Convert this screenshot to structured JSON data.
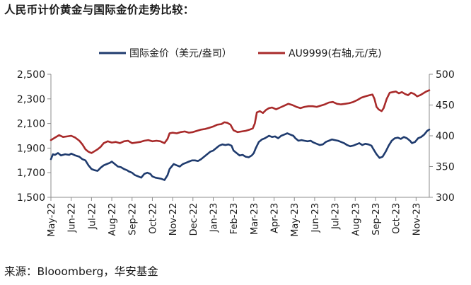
{
  "title": "人民币计价黄金与国际金价走势比较：",
  "source": "来源：Blooomberg，华安基金",
  "chart_data": {
    "type": "line",
    "x_labels": [
      "May-22",
      "Jun-22",
      "Jul-22",
      "Aug-22",
      "Sep-22",
      "Oct-22",
      "Nov-22",
      "Dec-22",
      "Jan-23",
      "Feb-23",
      "Mar-23",
      "Apr-23",
      "May-23",
      "Jun-23",
      "Jul-23",
      "Aug-23",
      "Sep-23",
      "Oct-23",
      "Nov-23"
    ],
    "x_range": [
      0,
      18.65
    ],
    "left_axis": {
      "ticks": [
        "1,500",
        "1,700",
        "1,900",
        "2,100",
        "2,300",
        "2,500"
      ],
      "ylim": [
        1500,
        2500
      ]
    },
    "right_axis": {
      "ticks": [
        "300",
        "350",
        "400",
        "450",
        "500"
      ],
      "ylim": [
        300,
        500
      ]
    },
    "series": [
      {
        "name": "国际金价（美元/盎司）",
        "axis": "left",
        "color": "#1f3b6e",
        "points": [
          [
            0,
            1810
          ],
          [
            0.1,
            1850
          ],
          [
            0.2,
            1845
          ],
          [
            0.35,
            1860
          ],
          [
            0.5,
            1840
          ],
          [
            0.7,
            1850
          ],
          [
            0.9,
            1845
          ],
          [
            1.0,
            1855
          ],
          [
            1.2,
            1840
          ],
          [
            1.4,
            1830
          ],
          [
            1.55,
            1810
          ],
          [
            1.7,
            1800
          ],
          [
            1.85,
            1760
          ],
          [
            2.0,
            1730
          ],
          [
            2.15,
            1720
          ],
          [
            2.3,
            1715
          ],
          [
            2.45,
            1740
          ],
          [
            2.6,
            1760
          ],
          [
            2.75,
            1770
          ],
          [
            2.9,
            1780
          ],
          [
            3.0,
            1790
          ],
          [
            3.15,
            1770
          ],
          [
            3.3,
            1750
          ],
          [
            3.45,
            1745
          ],
          [
            3.6,
            1730
          ],
          [
            3.75,
            1720
          ],
          [
            3.85,
            1710
          ],
          [
            4.0,
            1700
          ],
          [
            4.15,
            1680
          ],
          [
            4.3,
            1670
          ],
          [
            4.45,
            1660
          ],
          [
            4.6,
            1690
          ],
          [
            4.75,
            1700
          ],
          [
            4.9,
            1690
          ],
          [
            5.0,
            1670
          ],
          [
            5.15,
            1660
          ],
          [
            5.3,
            1655
          ],
          [
            5.45,
            1650
          ],
          [
            5.6,
            1640
          ],
          [
            5.75,
            1680
          ],
          [
            5.85,
            1730
          ],
          [
            5.95,
            1750
          ],
          [
            6.05,
            1770
          ],
          [
            6.2,
            1760
          ],
          [
            6.35,
            1750
          ],
          [
            6.5,
            1770
          ],
          [
            6.65,
            1780
          ],
          [
            6.8,
            1790
          ],
          [
            6.95,
            1800
          ],
          [
            7.1,
            1800
          ],
          [
            7.25,
            1795
          ],
          [
            7.4,
            1810
          ],
          [
            7.55,
            1830
          ],
          [
            7.7,
            1850
          ],
          [
            7.85,
            1870
          ],
          [
            8.0,
            1880
          ],
          [
            8.15,
            1900
          ],
          [
            8.3,
            1920
          ],
          [
            8.45,
            1930
          ],
          [
            8.6,
            1925
          ],
          [
            8.75,
            1930
          ],
          [
            8.9,
            1920
          ],
          [
            9.0,
            1880
          ],
          [
            9.15,
            1860
          ],
          [
            9.3,
            1840
          ],
          [
            9.45,
            1845
          ],
          [
            9.6,
            1830
          ],
          [
            9.75,
            1825
          ],
          [
            9.9,
            1840
          ],
          [
            10.0,
            1860
          ],
          [
            10.1,
            1900
          ],
          [
            10.25,
            1950
          ],
          [
            10.4,
            1970
          ],
          [
            10.55,
            1980
          ],
          [
            10.65,
            1990
          ],
          [
            10.75,
            2000
          ],
          [
            10.9,
            1990
          ],
          [
            11.05,
            1995
          ],
          [
            11.2,
            1980
          ],
          [
            11.35,
            2000
          ],
          [
            11.5,
            2010
          ],
          [
            11.65,
            2020
          ],
          [
            11.8,
            2010
          ],
          [
            11.95,
            2000
          ],
          [
            12.05,
            1980
          ],
          [
            12.2,
            1960
          ],
          [
            12.35,
            1965
          ],
          [
            12.5,
            1960
          ],
          [
            12.65,
            1955
          ],
          [
            12.8,
            1960
          ],
          [
            12.95,
            1945
          ],
          [
            13.1,
            1935
          ],
          [
            13.25,
            1925
          ],
          [
            13.4,
            1930
          ],
          [
            13.55,
            1950
          ],
          [
            13.7,
            1960
          ],
          [
            13.85,
            1970
          ],
          [
            14.0,
            1965
          ],
          [
            14.15,
            1960
          ],
          [
            14.3,
            1950
          ],
          [
            14.45,
            1940
          ],
          [
            14.6,
            1925
          ],
          [
            14.75,
            1915
          ],
          [
            14.9,
            1920
          ],
          [
            15.05,
            1930
          ],
          [
            15.2,
            1940
          ],
          [
            15.35,
            1925
          ],
          [
            15.5,
            1935
          ],
          [
            15.65,
            1930
          ],
          [
            15.8,
            1920
          ],
          [
            15.9,
            1890
          ],
          [
            16.05,
            1850
          ],
          [
            16.2,
            1820
          ],
          [
            16.35,
            1830
          ],
          [
            16.5,
            1870
          ],
          [
            16.65,
            1920
          ],
          [
            16.8,
            1960
          ],
          [
            16.95,
            1980
          ],
          [
            17.1,
            1985
          ],
          [
            17.25,
            1975
          ],
          [
            17.4,
            1990
          ],
          [
            17.55,
            1980
          ],
          [
            17.7,
            1960
          ],
          [
            17.8,
            1940
          ],
          [
            17.95,
            1950
          ],
          [
            18.1,
            1980
          ],
          [
            18.25,
            1990
          ],
          [
            18.4,
            2010
          ],
          [
            18.55,
            2040
          ],
          [
            18.65,
            2050
          ]
        ]
      },
      {
        "name": "AU9999(右轴,元/克)",
        "axis": "right",
        "color": "#a82a2a",
        "points": [
          [
            0,
            393
          ],
          [
            0.2,
            397
          ],
          [
            0.4,
            401
          ],
          [
            0.6,
            398
          ],
          [
            0.8,
            399
          ],
          [
            1.0,
            400
          ],
          [
            1.2,
            397
          ],
          [
            1.4,
            392
          ],
          [
            1.55,
            386
          ],
          [
            1.7,
            378
          ],
          [
            1.85,
            374
          ],
          [
            2.0,
            372
          ],
          [
            2.15,
            375
          ],
          [
            2.3,
            378
          ],
          [
            2.45,
            382
          ],
          [
            2.6,
            388
          ],
          [
            2.8,
            391
          ],
          [
            3.0,
            389
          ],
          [
            3.2,
            390
          ],
          [
            3.4,
            388
          ],
          [
            3.6,
            391
          ],
          [
            3.8,
            392
          ],
          [
            4.0,
            388
          ],
          [
            4.2,
            389
          ],
          [
            4.4,
            390
          ],
          [
            4.6,
            392
          ],
          [
            4.8,
            393
          ],
          [
            5.0,
            391
          ],
          [
            5.2,
            392
          ],
          [
            5.4,
            391
          ],
          [
            5.6,
            388
          ],
          [
            5.75,
            395
          ],
          [
            5.85,
            404
          ],
          [
            6.0,
            405
          ],
          [
            6.2,
            404
          ],
          [
            6.4,
            406
          ],
          [
            6.6,
            407
          ],
          [
            6.8,
            405
          ],
          [
            7.0,
            406
          ],
          [
            7.2,
            408
          ],
          [
            7.4,
            410
          ],
          [
            7.6,
            411
          ],
          [
            7.8,
            413
          ],
          [
            8.0,
            415
          ],
          [
            8.2,
            418
          ],
          [
            8.4,
            419
          ],
          [
            8.55,
            422
          ],
          [
            8.7,
            421
          ],
          [
            8.85,
            418
          ],
          [
            9.0,
            409
          ],
          [
            9.2,
            406
          ],
          [
            9.4,
            407
          ],
          [
            9.6,
            408
          ],
          [
            9.8,
            410
          ],
          [
            9.95,
            412
          ],
          [
            10.05,
            420
          ],
          [
            10.15,
            438
          ],
          [
            10.3,
            440
          ],
          [
            10.45,
            437
          ],
          [
            10.6,
            442
          ],
          [
            10.75,
            445
          ],
          [
            10.9,
            446
          ],
          [
            11.1,
            443
          ],
          [
            11.3,
            446
          ],
          [
            11.5,
            449
          ],
          [
            11.7,
            452
          ],
          [
            11.9,
            450
          ],
          [
            12.1,
            447
          ],
          [
            12.3,
            445
          ],
          [
            12.5,
            447
          ],
          [
            12.7,
            448
          ],
          [
            12.9,
            448
          ],
          [
            13.1,
            447
          ],
          [
            13.3,
            449
          ],
          [
            13.5,
            451
          ],
          [
            13.7,
            454
          ],
          [
            13.9,
            455
          ],
          [
            14.1,
            452
          ],
          [
            14.3,
            451
          ],
          [
            14.5,
            452
          ],
          [
            14.7,
            453
          ],
          [
            14.9,
            455
          ],
          [
            15.1,
            458
          ],
          [
            15.3,
            462
          ],
          [
            15.5,
            464
          ],
          [
            15.7,
            466
          ],
          [
            15.85,
            467
          ],
          [
            15.95,
            460
          ],
          [
            16.05,
            447
          ],
          [
            16.15,
            443
          ],
          [
            16.3,
            440
          ],
          [
            16.4,
            445
          ],
          [
            16.55,
            460
          ],
          [
            16.7,
            470
          ],
          [
            16.85,
            471
          ],
          [
            17.0,
            472
          ],
          [
            17.15,
            469
          ],
          [
            17.3,
            471
          ],
          [
            17.45,
            468
          ],
          [
            17.6,
            466
          ],
          [
            17.75,
            470
          ],
          [
            17.9,
            468
          ],
          [
            18.05,
            464
          ],
          [
            18.2,
            466
          ],
          [
            18.35,
            469
          ],
          [
            18.5,
            472
          ],
          [
            18.65,
            474
          ]
        ]
      }
    ]
  }
}
